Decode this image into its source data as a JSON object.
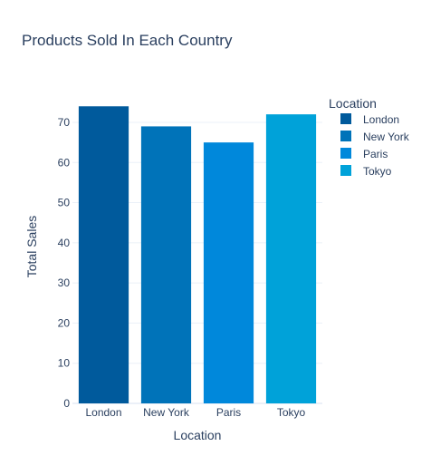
{
  "chart_data": {
    "type": "bar",
    "title": "Products Sold In Each Country",
    "xlabel": "Location",
    "ylabel": "Total Sales",
    "categories": [
      "London",
      "New York",
      "Paris",
      "Tokyo"
    ],
    "values": [
      74,
      69,
      65,
      72
    ],
    "colors": [
      "#005a9c",
      "#0073b9",
      "#0088db",
      "#00a2d9"
    ],
    "ylim": [
      0,
      77.9
    ],
    "yticks": [
      0,
      10,
      20,
      30,
      40,
      50,
      60,
      70
    ],
    "grid": true,
    "legend": {
      "title": "Location",
      "placement": "top-right",
      "items": [
        "London",
        "New York",
        "Paris",
        "Tokyo"
      ]
    }
  }
}
